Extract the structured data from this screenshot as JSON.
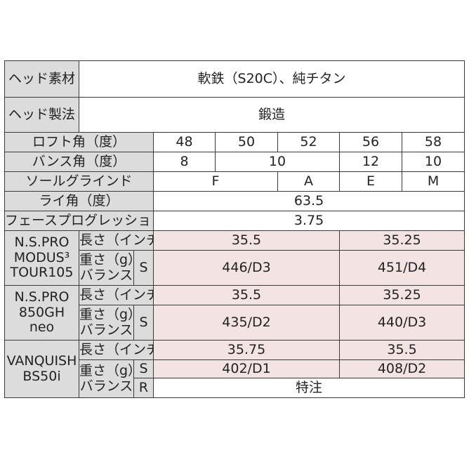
{
  "head": {
    "material_label": "ヘッド素材",
    "material_value": "軟鉄（S20C）、純チタン",
    "method_label": "ヘッド製法",
    "method_value": "鍛造"
  },
  "specs": {
    "loft_label": "ロフト角（度）",
    "lofts": [
      "48",
      "50",
      "52",
      "56",
      "58"
    ],
    "bounce_label": "バンス角（度）",
    "bounce": [
      "8",
      "10",
      "12",
      "10"
    ],
    "sole_label": "ソールグラインド",
    "sole": [
      "F",
      "A",
      "E",
      "M"
    ],
    "lie_label": "ライ角（度）",
    "lie": "63.5",
    "fp_label": "フェースプログレッション（mm）",
    "fp": "3.75"
  },
  "shafts": {
    "length_label": "長さ（インチ）",
    "weight_label_1": "重さ（g）/",
    "weight_label_2": "バランス",
    "modus": {
      "name_1": "N.S.PRO",
      "name_2": "MODUS³",
      "name_3": "TOUR105",
      "flex": "S",
      "length": [
        "35.5",
        "35.25"
      ],
      "weight": [
        "446/D3",
        "451/D4"
      ]
    },
    "neo": {
      "name_1": "N.S.PRO",
      "name_2": "850GH",
      "name_3": "neo",
      "flex": "S",
      "length": [
        "35.5",
        "35.25"
      ],
      "weight": [
        "435/D2",
        "440/D3"
      ]
    },
    "vanquish": {
      "name_1": "VANQUISH",
      "name_2": "BS50i",
      "flex_s": "S",
      "flex_r": "R",
      "length": [
        "35.75",
        "35.5"
      ],
      "weight": [
        "402/D1",
        "408/D2"
      ],
      "r_value": "特注"
    }
  }
}
